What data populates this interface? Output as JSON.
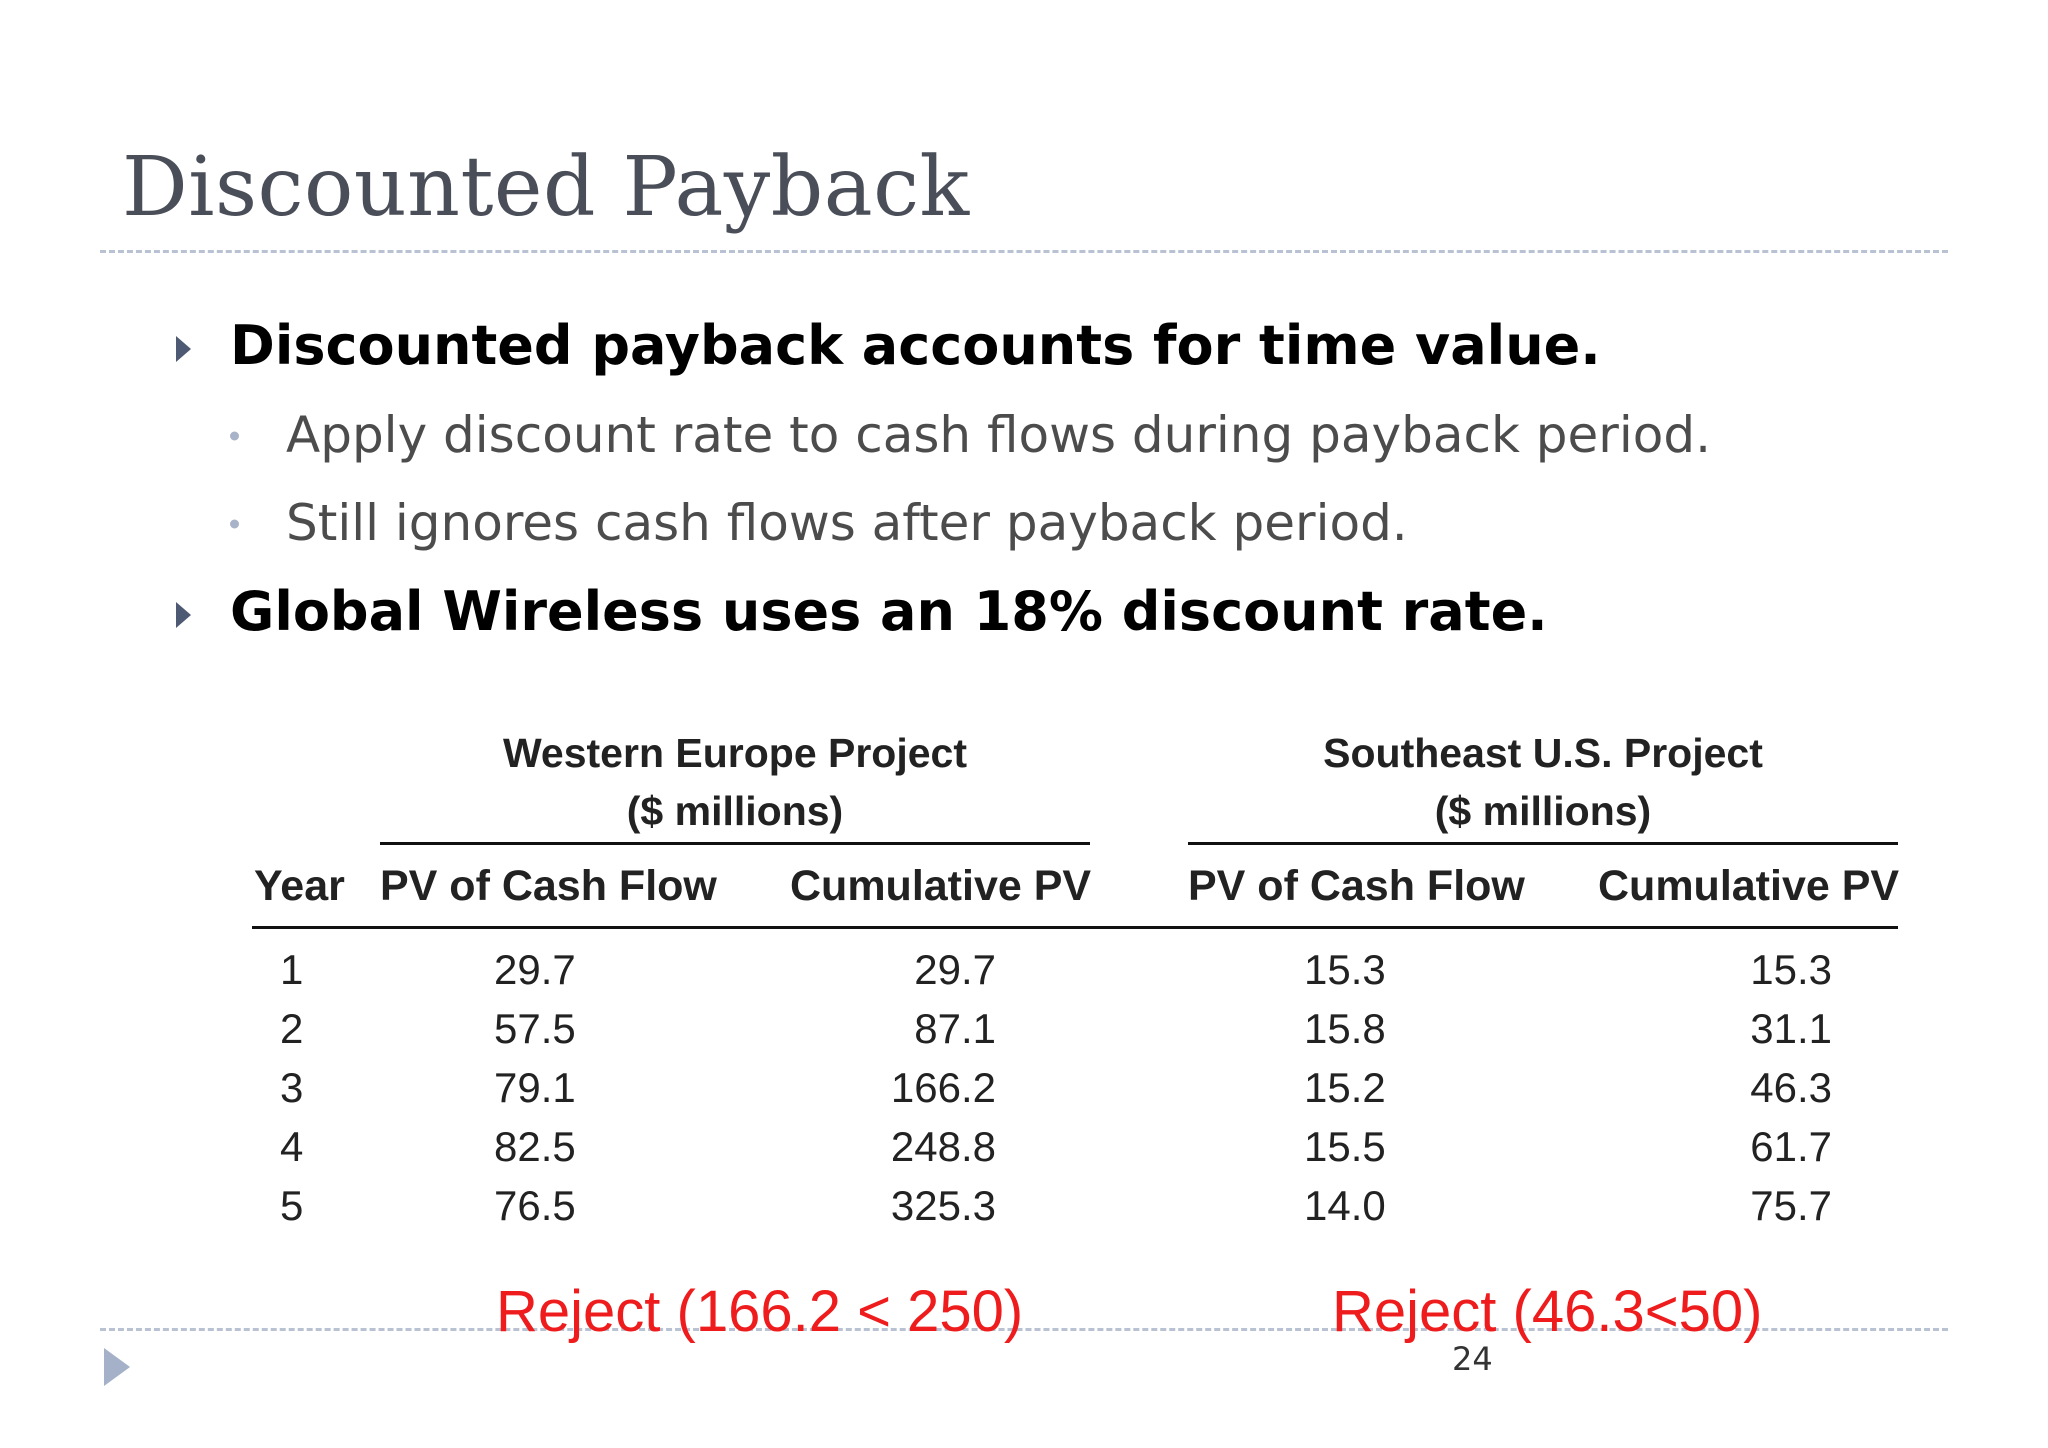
{
  "title": "Discounted Payback",
  "bullets": [
    {
      "text": "Discounted payback accounts for time value.",
      "subs": [
        "Apply discount rate to cash flows during payback period.",
        "Still ignores cash flows after payback period."
      ]
    },
    {
      "text": "Global Wireless uses an 18% discount rate.",
      "subs": []
    }
  ],
  "table": {
    "groups": [
      {
        "name": "Western Europe Project",
        "unit": "($ millions)"
      },
      {
        "name": "Southeast U.S. Project",
        "unit": "($ millions)"
      }
    ],
    "columns": [
      "Year",
      "PV of Cash Flow",
      "Cumulative PV",
      "PV of Cash Flow",
      "Cumulative PV"
    ],
    "rows": [
      [
        "1",
        "29.7",
        "29.7",
        "15.3",
        "15.3"
      ],
      [
        "2",
        "57.5",
        "87.1",
        "15.8",
        "31.1"
      ],
      [
        "3",
        "79.1",
        "166.2",
        "15.2",
        "46.3"
      ],
      [
        "4",
        "82.5",
        "248.8",
        "15.5",
        "61.7"
      ],
      [
        "5",
        "76.5",
        "325.3",
        "14.0",
        "75.7"
      ]
    ]
  },
  "notes": {
    "western": "Reject (166.2 < 250)",
    "southeast": "Reject (46.3<50)"
  },
  "page_number": "24",
  "colors": {
    "title": "#4a4e58",
    "rule": "#b8c2d2",
    "note": "#ee1c1c"
  }
}
